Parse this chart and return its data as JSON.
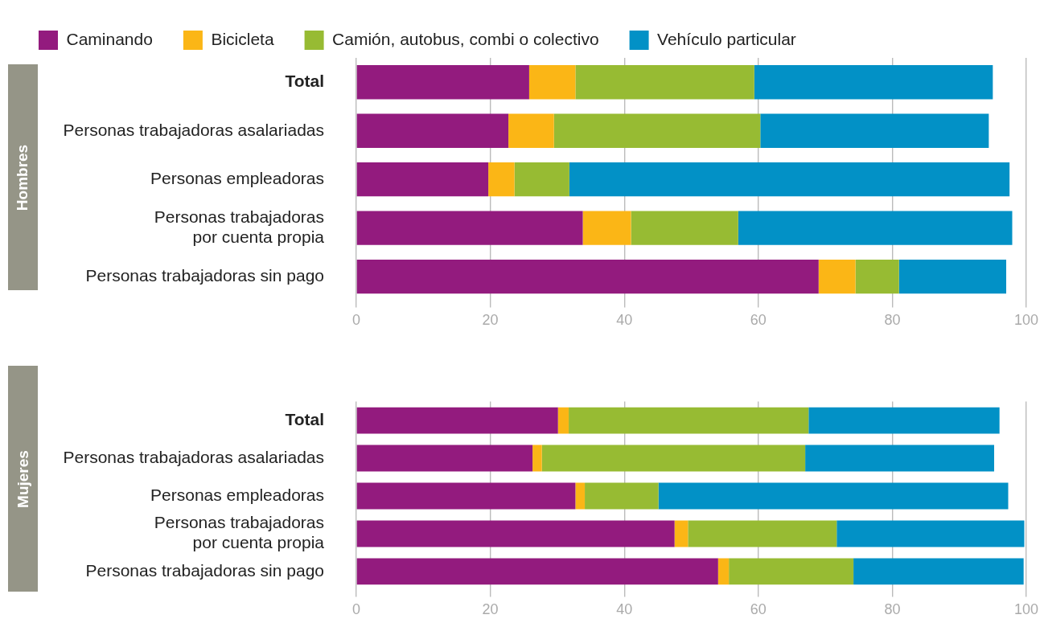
{
  "chart_data": [
    {
      "type": "bar",
      "orientation": "horizontal",
      "stacked": true,
      "ylabel": "Hombres",
      "legend": "top left",
      "grid": "x",
      "categories": [
        "Total",
        "Personas trabajadoras asalariadas",
        "Personas empleadoras",
        "Personas trabajadoras\npor cuenta propia",
        "Personas trabajadoras sin pago"
      ],
      "xlim": [
        0,
        100
      ],
      "xticks": [
        0,
        20,
        40,
        60,
        80,
        100
      ],
      "series": [
        {
          "name": "Caminando",
          "color": "#931b7e",
          "values": [
            25.8,
            22.7,
            19.7,
            33.8,
            69.0
          ]
        },
        {
          "name": "Bicicleta",
          "color": "#fbb616",
          "values": [
            6.9,
            6.8,
            3.9,
            7.2,
            5.5
          ]
        },
        {
          "name": "Camión, autobus, combi o colectivo",
          "color": "#97bb33",
          "values": [
            26.7,
            30.8,
            8.2,
            16.0,
            6.5
          ]
        },
        {
          "name": "Vehículo particular",
          "color": "#0291c6",
          "values": [
            35.6,
            34.1,
            65.7,
            40.9,
            16.0
          ]
        }
      ]
    },
    {
      "type": "bar",
      "orientation": "horizontal",
      "stacked": true,
      "ylabel": "Mujeres",
      "grid": "x",
      "categories": [
        "Total",
        "Personas trabajadoras asalariadas",
        "Personas empleadoras",
        "Personas trabajadoras\npor cuenta propia",
        "Personas trabajadoras sin pago"
      ],
      "xlim": [
        0,
        100
      ],
      "xticks": [
        0,
        20,
        40,
        60,
        80,
        100
      ],
      "series": [
        {
          "color": "#931b7e",
          "values": [
            30.1,
            26.3,
            32.7,
            47.5,
            54.0
          ]
        },
        {
          "color": "#fbb616",
          "values": [
            1.6,
            1.4,
            1.4,
            2.0,
            1.6
          ]
        },
        {
          "color": "#97bb33",
          "values": [
            35.8,
            39.3,
            11.0,
            22.2,
            18.6
          ]
        },
        {
          "color": "#0291c6",
          "values": [
            28.5,
            28.2,
            52.2,
            28.0,
            25.4
          ]
        }
      ]
    }
  ]
}
